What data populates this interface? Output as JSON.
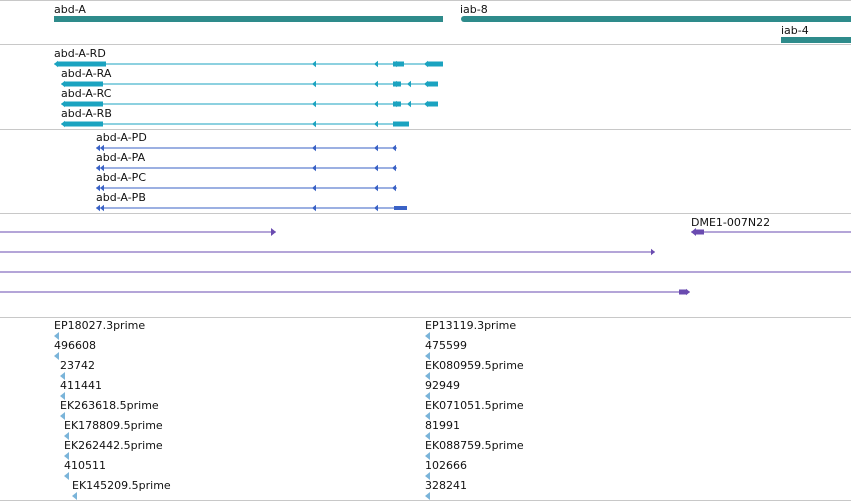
{
  "colors": {
    "gene": "#2e8b8b",
    "transcript": "#1ba3c0",
    "protein": "#3a62c6",
    "clone": "#6a4bb0",
    "est": "#7ab4d9",
    "divider": "#c8c8c8"
  },
  "genes": [
    {
      "label": "abd-A"
    },
    {
      "label": "iab-8"
    },
    {
      "label": "iab-4"
    }
  ],
  "transcripts": [
    {
      "label": "abd-A-RD"
    },
    {
      "label": "abd-A-RA"
    },
    {
      "label": "abd-A-RC"
    },
    {
      "label": "abd-A-RB"
    }
  ],
  "proteins": [
    {
      "label": "abd-A-PD"
    },
    {
      "label": "abd-A-PA"
    },
    {
      "label": "abd-A-PC"
    },
    {
      "label": "abd-A-PB"
    }
  ],
  "clones": [
    {
      "label": "DME1-007N22"
    }
  ],
  "ests_left": [
    {
      "label": "EP18027.3prime"
    },
    {
      "label": "496608"
    },
    {
      "label": "23742"
    },
    {
      "label": "411441"
    },
    {
      "label": "EK263618.5prime"
    },
    {
      "label": "EK178809.5prime"
    },
    {
      "label": "EK262442.5prime"
    },
    {
      "label": "410511"
    },
    {
      "label": "EK145209.5prime"
    }
  ],
  "ests_right": [
    {
      "label": "EP13119.3prime"
    },
    {
      "label": "475599"
    },
    {
      "label": "EK080959.5prime"
    },
    {
      "label": "92949"
    },
    {
      "label": "EK071051.5prime"
    },
    {
      "label": "81991"
    },
    {
      "label": "EK088759.5prime"
    },
    {
      "label": "102666"
    },
    {
      "label": "328241"
    }
  ]
}
